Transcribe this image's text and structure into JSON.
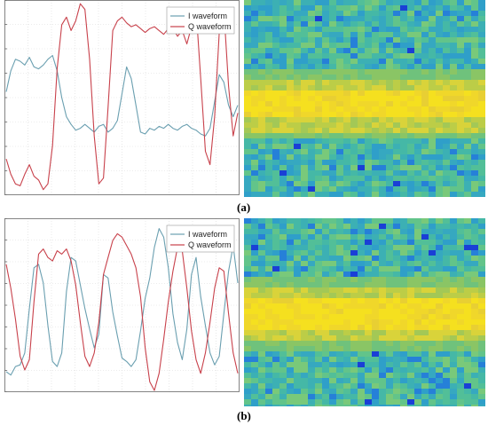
{
  "captions": {
    "a": "(a)",
    "b": "(b)"
  },
  "colors": {
    "i_series": "#6a9fb0",
    "q_series": "#c8414b",
    "grid": "#d9d9d9",
    "axis": "#666666"
  },
  "chart_data": [
    {
      "panel": "a",
      "type": "line",
      "title": "",
      "xlabel": "",
      "ylabel": "",
      "grid": true,
      "legend": "top-right",
      "xlim": [
        0,
        100
      ],
      "ylim": [
        0,
        100
      ],
      "series": [
        {
          "name": "I waveform",
          "x": [
            0,
            2,
            4,
            6,
            8,
            10,
            12,
            14,
            16,
            18,
            20,
            22,
            24,
            26,
            28,
            30,
            32,
            34,
            36,
            38,
            40,
            42,
            44,
            46,
            48,
            50,
            52,
            54,
            56,
            58,
            60,
            62,
            64,
            66,
            68,
            70,
            72,
            74,
            76,
            78,
            80,
            82,
            84,
            86,
            88,
            90,
            92,
            94,
            96,
            98,
            100
          ],
          "y": [
            53,
            64,
            70,
            69,
            67,
            71,
            66,
            65,
            67,
            70,
            72,
            64,
            50,
            40,
            36,
            33,
            34,
            36,
            34,
            32,
            35,
            36,
            32,
            34,
            38,
            52,
            66,
            60,
            46,
            32,
            31,
            34,
            33,
            35,
            34,
            36,
            34,
            33,
            35,
            36,
            34,
            33,
            31,
            30,
            34,
            48,
            62,
            58,
            46,
            40,
            46
          ]
        },
        {
          "name": "Q waveform",
          "x": [
            0,
            2,
            4,
            6,
            8,
            10,
            12,
            14,
            16,
            18,
            20,
            22,
            24,
            26,
            28,
            30,
            32,
            34,
            36,
            38,
            40,
            42,
            44,
            46,
            48,
            50,
            52,
            54,
            56,
            58,
            60,
            62,
            64,
            66,
            68,
            70,
            72,
            74,
            76,
            78,
            80,
            82,
            84,
            86,
            88,
            90,
            92,
            94,
            96,
            98,
            100
          ],
          "y": [
            18,
            10,
            5,
            4,
            10,
            15,
            9,
            7,
            2,
            5,
            25,
            65,
            88,
            92,
            85,
            90,
            99,
            96,
            70,
            30,
            5,
            8,
            45,
            85,
            90,
            92,
            89,
            87,
            88,
            86,
            84,
            86,
            87,
            85,
            83,
            86,
            86,
            82,
            85,
            78,
            87,
            96,
            60,
            22,
            15,
            40,
            84,
            96,
            56,
            30,
            42
          ]
        }
      ]
    },
    {
      "panel": "b",
      "type": "line",
      "title": "",
      "xlabel": "",
      "ylabel": "",
      "grid": true,
      "legend": "top-right",
      "xlim": [
        0,
        100
      ],
      "ylim": [
        0,
        100
      ],
      "series": [
        {
          "name": "I waveform",
          "x": [
            0,
            2,
            4,
            6,
            8,
            10,
            12,
            14,
            16,
            18,
            20,
            22,
            24,
            26,
            28,
            30,
            32,
            34,
            36,
            38,
            40,
            42,
            44,
            46,
            48,
            50,
            52,
            54,
            56,
            58,
            60,
            62,
            64,
            66,
            68,
            70,
            72,
            74,
            76,
            78,
            80,
            82,
            84,
            86,
            88,
            90,
            92,
            94,
            96,
            98,
            100
          ],
          "y": [
            11,
            9,
            14,
            15,
            22,
            48,
            72,
            74,
            63,
            38,
            17,
            14,
            22,
            58,
            78,
            76,
            62,
            48,
            36,
            25,
            33,
            68,
            66,
            46,
            32,
            19,
            17,
            14,
            18,
            35,
            54,
            66,
            84,
            95,
            90,
            72,
            45,
            28,
            18,
            36,
            68,
            78,
            55,
            38,
            22,
            15,
            20,
            45,
            70,
            85,
            63
          ]
        },
        {
          "name": "Q waveform",
          "x": [
            0,
            2,
            4,
            6,
            8,
            10,
            12,
            14,
            16,
            18,
            20,
            22,
            24,
            26,
            28,
            30,
            32,
            34,
            36,
            38,
            40,
            42,
            44,
            46,
            48,
            50,
            52,
            54,
            56,
            58,
            60,
            62,
            64,
            66,
            68,
            70,
            72,
            74,
            76,
            78,
            80,
            82,
            84,
            86,
            88,
            90,
            92,
            94,
            96,
            98,
            100
          ],
          "y": [
            74,
            60,
            42,
            20,
            12,
            18,
            52,
            80,
            83,
            78,
            76,
            82,
            80,
            83,
            76,
            62,
            40,
            20,
            14,
            22,
            40,
            68,
            78,
            88,
            92,
            90,
            85,
            80,
            72,
            55,
            25,
            5,
            0,
            10,
            30,
            52,
            70,
            84,
            82,
            60,
            35,
            18,
            10,
            22,
            40,
            60,
            72,
            70,
            45,
            22,
            10
          ]
        }
      ]
    }
  ]
}
